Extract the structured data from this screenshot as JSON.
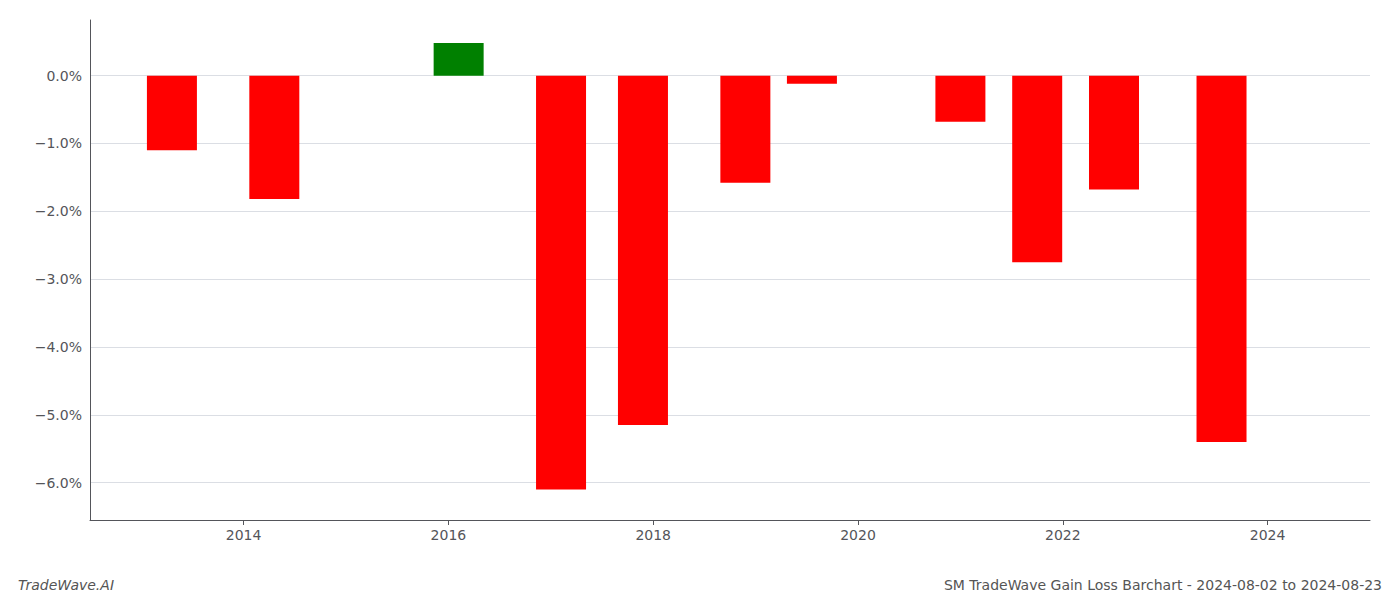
{
  "chart_data": {
    "type": "bar",
    "x": [
      2013.3,
      2014.3,
      2016.1,
      2017.1,
      2017.9,
      2018.9,
      2019.55,
      2021.0,
      2021.75,
      2022.5,
      2023.55
    ],
    "values": [
      -1.1,
      -1.82,
      0.48,
      -6.1,
      -5.15,
      -1.58,
      -0.12,
      -0.68,
      -2.75,
      -1.68,
      -5.4
    ],
    "colors": [
      "#ff0000",
      "#ff0000",
      "#008000",
      "#ff0000",
      "#ff0000",
      "#ff0000",
      "#ff0000",
      "#ff0000",
      "#ff0000",
      "#ff0000",
      "#ff0000"
    ],
    "xlim": [
      2012.5,
      2025.0
    ],
    "xticks": [
      2014,
      2016,
      2018,
      2020,
      2022,
      2024
    ],
    "ylim": [
      -6.55,
      0.82
    ],
    "yticks": [
      {
        "value": 0.0,
        "label": "0.0%"
      },
      {
        "value": -1.0,
        "label": "−1.0%"
      },
      {
        "value": -2.0,
        "label": "−2.0%"
      },
      {
        "value": -3.0,
        "label": "−3.0%"
      },
      {
        "value": -4.0,
        "label": "−4.0%"
      },
      {
        "value": -5.0,
        "label": "−5.0%"
      },
      {
        "value": -6.0,
        "label": "−6.0%"
      }
    ],
    "grid": true,
    "annotations": [
      "TradeWave.AI",
      "SM TradeWave Gain Loss Barchart - 2024-08-02 to 2024-08-23"
    ]
  }
}
